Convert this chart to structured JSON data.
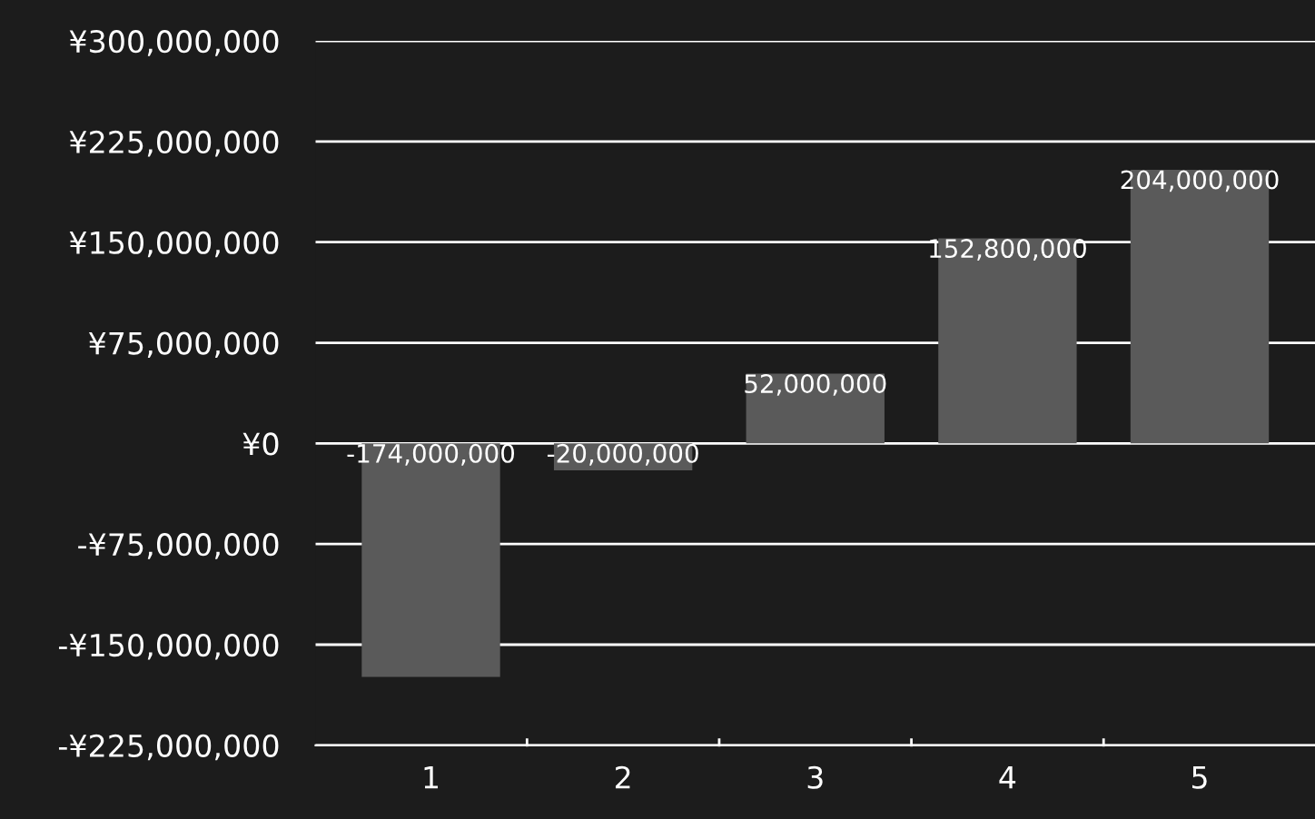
{
  "chart_data": {
    "type": "bar",
    "categories": [
      "1",
      "2",
      "3",
      "4",
      "5"
    ],
    "values": [
      -174000000,
      -20000000,
      52000000,
      152800000,
      204000000
    ],
    "value_labels": [
      "-174,000,000",
      "-20,000,000",
      "52,000,000",
      "152,800,000",
      "204,000,000"
    ],
    "color": "#5a5a5a",
    "ylim": [
      -225000000,
      300000000
    ],
    "yticks": [
      {
        "value": -225000000,
        "label": "-¥225,000,000"
      },
      {
        "value": -150000000,
        "label": "-¥150,000,000"
      },
      {
        "value": -75000000,
        "label": "-¥75,000,000"
      },
      {
        "value": 0,
        "label": "¥0"
      },
      {
        "value": 75000000,
        "label": "¥75,000,000"
      },
      {
        "value": 150000000,
        "label": "¥150,000,000"
      },
      {
        "value": 225000000,
        "label": "¥225,000,000"
      },
      {
        "value": 300000000,
        "label": "¥300,000,000"
      }
    ],
    "grid": "y",
    "legend": false
  }
}
